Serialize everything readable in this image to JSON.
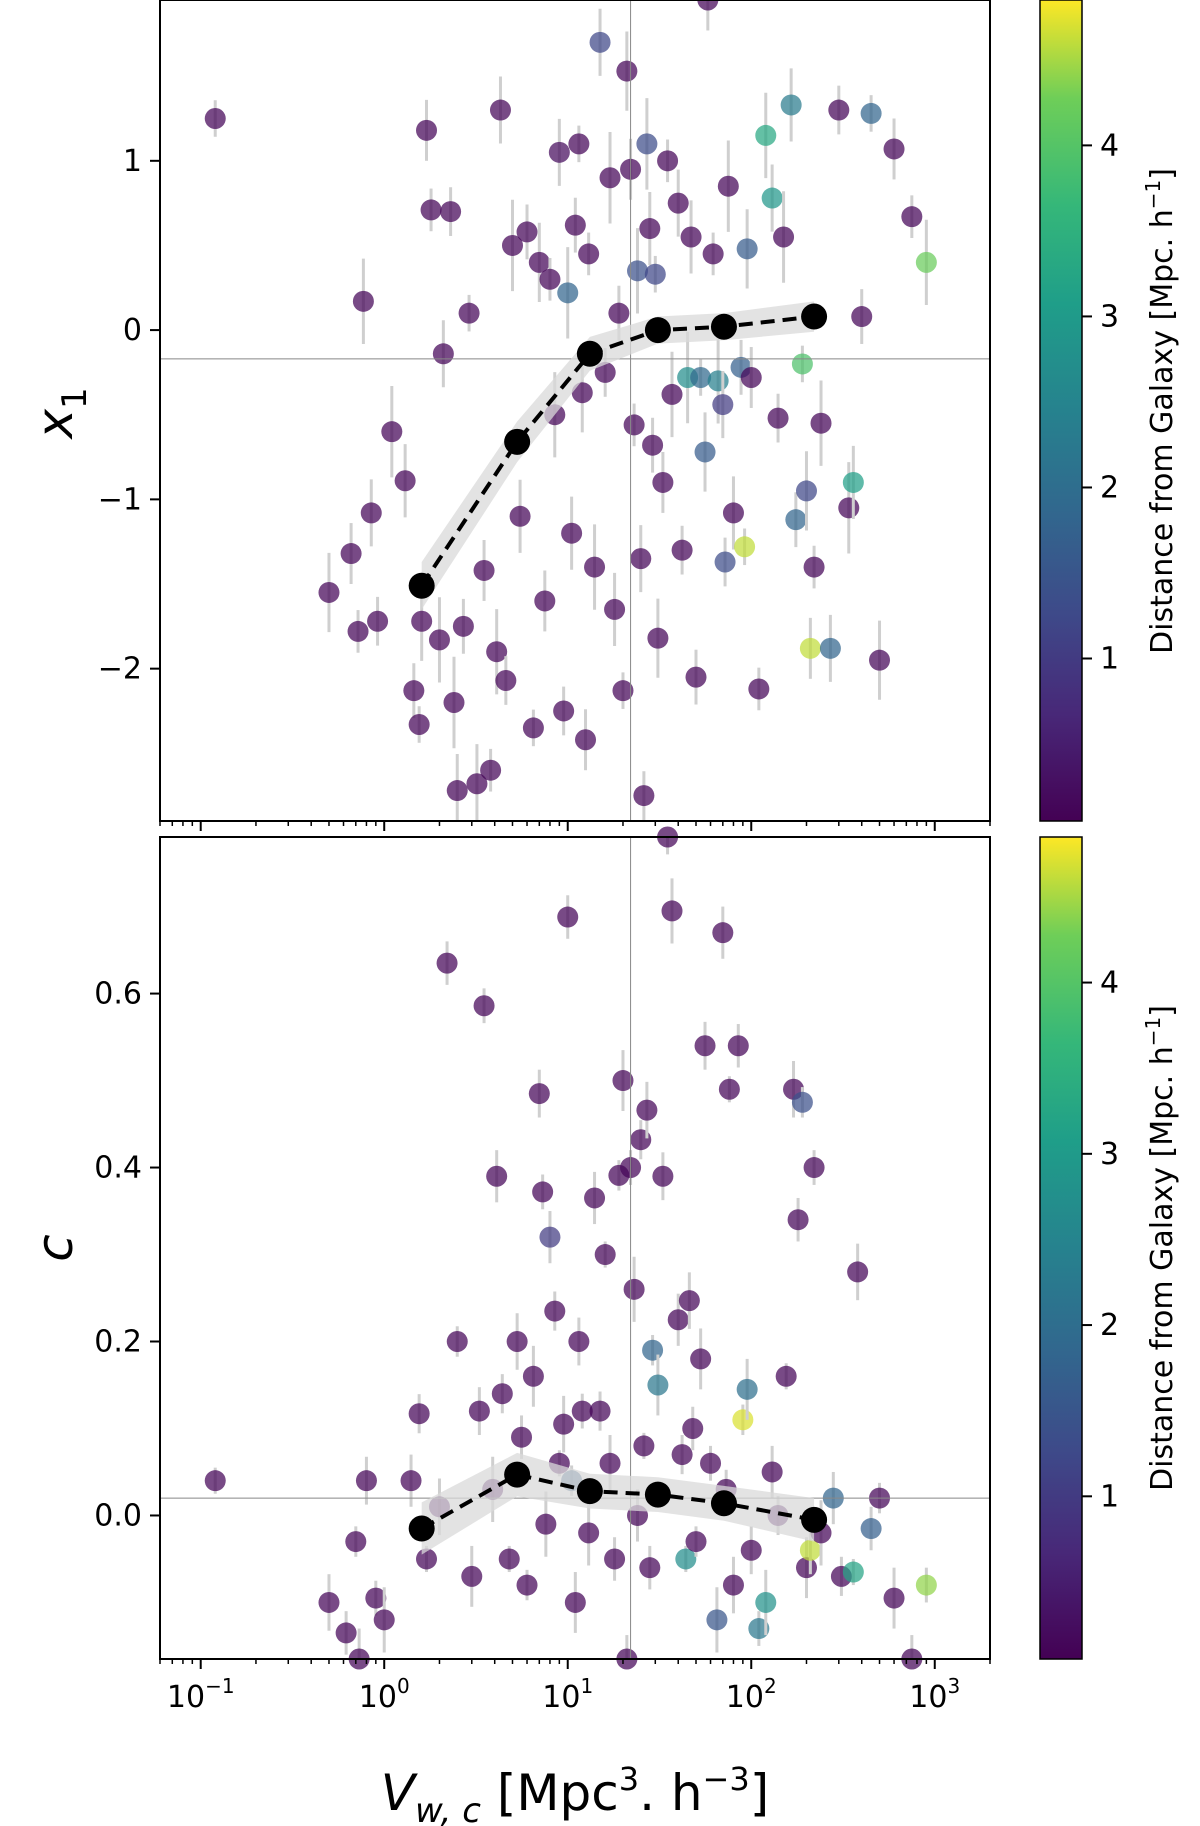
{
  "chart_data": [
    {
      "type": "scatter",
      "panel": "top",
      "ylabel": "x",
      "ylabel_sub": "1",
      "xscale": "log",
      "xlim": [
        0.06,
        2000
      ],
      "ylim": [
        -2.9,
        1.95
      ],
      "yticks": [
        1,
        0,
        -1,
        -2
      ],
      "ytick_labels": [
        "1",
        "0",
        "−1",
        "−2"
      ],
      "reference_lines": {
        "x": 22,
        "y": -0.17
      },
      "colorbar": {
        "label_main": "Distance from Galaxy [Mpc. h",
        "label_sup": "−1",
        "label_close": "]",
        "range": [
          0.05,
          4.85
        ],
        "ticks": [
          1,
          2,
          3,
          4
        ],
        "tick_labels": [
          "1",
          "2",
          "3",
          "4"
        ],
        "colormap": "viridis"
      },
      "binned_trend": {
        "x": [
          1.6,
          5.3,
          13.2,
          31,
          71,
          220
        ],
        "y": [
          -1.51,
          -0.66,
          -0.14,
          0.0,
          0.02,
          0.08
        ],
        "err": [
          0.14,
          0.12,
          0.1,
          0.08,
          0.08,
          0.09
        ]
      },
      "points": [
        [
          0.12,
          1.25,
          0.1
        ],
        [
          0.5,
          -1.55,
          0.1
        ],
        [
          0.66,
          -1.32,
          0.1
        ],
        [
          0.72,
          -1.78,
          0.1
        ],
        [
          0.77,
          0.17,
          0.1
        ],
        [
          0.85,
          -1.08,
          0.1
        ],
        [
          0.92,
          -1.72,
          0.1
        ],
        [
          1.1,
          -0.6,
          0.1
        ],
        [
          1.3,
          -0.89,
          0.1
        ],
        [
          1.45,
          -2.13,
          0.1
        ],
        [
          1.55,
          -2.33,
          0.1
        ],
        [
          1.6,
          -1.72,
          0.1
        ],
        [
          1.7,
          1.18,
          0.1
        ],
        [
          1.8,
          0.71,
          0.1
        ],
        [
          2.0,
          -1.83,
          0.1
        ],
        [
          2.1,
          -0.14,
          0.1
        ],
        [
          2.3,
          0.7,
          0.1
        ],
        [
          2.4,
          -2.2,
          0.1
        ],
        [
          2.5,
          -2.72,
          0.1
        ],
        [
          2.7,
          -1.75,
          0.1
        ],
        [
          2.9,
          0.1,
          0.1
        ],
        [
          3.2,
          -2.68,
          0.1
        ],
        [
          3.5,
          -1.42,
          0.1
        ],
        [
          3.8,
          -2.6,
          0.1
        ],
        [
          4.1,
          -1.9,
          0.1
        ],
        [
          4.3,
          1.3,
          0.1
        ],
        [
          4.6,
          -2.07,
          0.1
        ],
        [
          5.0,
          0.5,
          0.1
        ],
        [
          5.5,
          -1.1,
          0.1
        ],
        [
          6.0,
          0.58,
          0.1
        ],
        [
          6.5,
          -2.35,
          0.1
        ],
        [
          7.0,
          0.4,
          0.1
        ],
        [
          7.5,
          -1.6,
          0.1
        ],
        [
          8.0,
          0.3,
          0.1
        ],
        [
          8.5,
          -0.5,
          0.1
        ],
        [
          9.0,
          1.05,
          0.2
        ],
        [
          9.5,
          -2.25,
          0.1
        ],
        [
          10.0,
          0.22,
          1.8
        ],
        [
          10.5,
          -1.2,
          0.1
        ],
        [
          11.0,
          0.62,
          0.1
        ],
        [
          11.5,
          1.1,
          0.1
        ],
        [
          12.0,
          -0.37,
          0.1
        ],
        [
          12.5,
          -2.42,
          0.1
        ],
        [
          13.0,
          0.45,
          0.1
        ],
        [
          14.0,
          -1.4,
          0.1
        ],
        [
          15.0,
          1.7,
          1.2
        ],
        [
          16.0,
          -0.25,
          0.1
        ],
        [
          17.0,
          0.9,
          0.1
        ],
        [
          18.0,
          -1.65,
          0.1
        ],
        [
          19.0,
          0.1,
          0.1
        ],
        [
          20.0,
          -2.13,
          0.1
        ],
        [
          21.0,
          1.53,
          0.1
        ],
        [
          22.0,
          0.95,
          0.1
        ],
        [
          23.0,
          -0.56,
          0.1
        ],
        [
          24.0,
          0.35,
          1.4
        ],
        [
          25.0,
          -1.35,
          0.1
        ],
        [
          26.0,
          -2.75,
          0.1
        ],
        [
          27.0,
          1.1,
          1.3
        ],
        [
          28.0,
          0.6,
          0.1
        ],
        [
          29.0,
          -0.68,
          0.1
        ],
        [
          30.0,
          0.33,
          1.2
        ],
        [
          31.0,
          -1.82,
          0.1
        ],
        [
          33.0,
          -0.9,
          0.1
        ],
        [
          35.0,
          1.0,
          0.1
        ],
        [
          37.0,
          -0.38,
          0.1
        ],
        [
          40.0,
          0.75,
          0.1
        ],
        [
          42.0,
          -1.3,
          0.1
        ],
        [
          45.0,
          -0.28,
          2.7
        ],
        [
          47.0,
          0.55,
          0.1
        ],
        [
          50.0,
          -2.05,
          0.1
        ],
        [
          53.0,
          -0.28,
          1.9
        ],
        [
          56.0,
          -0.72,
          1.6
        ],
        [
          58.0,
          1.95,
          0.1
        ],
        [
          62.0,
          0.45,
          0.1
        ],
        [
          66.0,
          -0.3,
          2.4
        ],
        [
          70.0,
          -0.44,
          1.0
        ],
        [
          72.0,
          -1.37,
          1.3
        ],
        [
          75.0,
          0.85,
          0.1
        ],
        [
          80.0,
          -1.08,
          0.1
        ],
        [
          88.0,
          -0.22,
          1.7
        ],
        [
          92.0,
          -1.28,
          4.6
        ],
        [
          95.0,
          0.48,
          1.6
        ],
        [
          100.0,
          -0.28,
          0.1
        ],
        [
          110.0,
          -2.12,
          0.1
        ],
        [
          120.0,
          1.15,
          3.3
        ],
        [
          130.0,
          0.78,
          2.9
        ],
        [
          140.0,
          -0.52,
          0.1
        ],
        [
          150.0,
          0.55,
          0.1
        ],
        [
          165.0,
          1.33,
          2.3
        ],
        [
          175.0,
          -1.12,
          1.8
        ],
        [
          190.0,
          -0.2,
          3.9
        ],
        [
          200.0,
          -0.95,
          1.2
        ],
        [
          210.0,
          -1.88,
          4.6
        ],
        [
          220.0,
          -1.4,
          0.1
        ],
        [
          240.0,
          -0.55,
          0.1
        ],
        [
          270.0,
          -1.88,
          1.8
        ],
        [
          300.0,
          1.3,
          0.1
        ],
        [
          340.0,
          -1.05,
          0.1
        ],
        [
          360.0,
          -0.9,
          3.1
        ],
        [
          400.0,
          0.08,
          0.1
        ],
        [
          450.0,
          1.28,
          1.8
        ],
        [
          500.0,
          -1.95,
          0.1
        ],
        [
          600.0,
          1.07,
          0.1
        ],
        [
          750.0,
          0.67,
          0.1
        ],
        [
          900.0,
          0.4,
          4.2
        ]
      ]
    },
    {
      "type": "scatter",
      "panel": "bottom",
      "ylabel": "c",
      "xlabel_main": "V",
      "xlabel_sub": "w, c",
      "xlabel_units_pre": " [Mpc",
      "xlabel_sup1": "3",
      "xlabel_units_mid": ". h",
      "xlabel_sup2": "−3",
      "xlabel_units_post": "]",
      "xscale": "log",
      "xlim": [
        0.06,
        2000
      ],
      "ylim": [
        -0.165,
        0.78
      ],
      "xticks": [
        0.1,
        1,
        10,
        100,
        1000
      ],
      "xtick_bases": [
        "10",
        "10",
        "10",
        "10",
        "10"
      ],
      "xtick_exps": [
        "−1",
        "0",
        "1",
        "2",
        "3"
      ],
      "yticks": [
        0.0,
        0.2,
        0.4,
        0.6
      ],
      "ytick_labels": [
        "0.0",
        "0.2",
        "0.4",
        "0.6"
      ],
      "reference_lines": {
        "x": 22,
        "y": 0.02
      },
      "colorbar": {
        "label_main": "Distance from Galaxy [Mpc. h",
        "label_sup": "−1",
        "label_close": "]",
        "range": [
          0.05,
          4.85
        ],
        "ticks": [
          1,
          2,
          3,
          4
        ],
        "tick_labels": [
          "1",
          "2",
          "3",
          "4"
        ],
        "colormap": "viridis"
      },
      "binned_trend": {
        "x": [
          1.6,
          5.3,
          13.2,
          31,
          71,
          220
        ],
        "y": [
          -0.015,
          0.047,
          0.028,
          0.024,
          0.014,
          -0.005
        ],
        "err": [
          0.03,
          0.025,
          0.02,
          0.02,
          0.02,
          0.025
        ]
      },
      "points": [
        [
          0.12,
          0.04,
          0.1
        ],
        [
          0.5,
          -0.1,
          0.1
        ],
        [
          0.62,
          -0.135,
          0.1
        ],
        [
          0.7,
          -0.03,
          0.1
        ],
        [
          0.73,
          -0.165,
          0.1
        ],
        [
          0.8,
          0.04,
          0.1
        ],
        [
          0.9,
          -0.095,
          0.1
        ],
        [
          1.0,
          -0.12,
          0.1
        ],
        [
          1.4,
          0.04,
          0.1
        ],
        [
          1.55,
          0.117,
          0.1
        ],
        [
          1.7,
          -0.05,
          0.1
        ],
        [
          2.0,
          0.01,
          0.1
        ],
        [
          2.2,
          0.635,
          0.1
        ],
        [
          2.5,
          0.2,
          0.1
        ],
        [
          3.0,
          -0.07,
          0.1
        ],
        [
          3.3,
          0.12,
          0.1
        ],
        [
          3.5,
          0.586,
          0.1
        ],
        [
          3.9,
          0.03,
          0.1
        ],
        [
          4.1,
          0.39,
          0.1
        ],
        [
          4.4,
          0.14,
          0.1
        ],
        [
          4.8,
          -0.05,
          0.1
        ],
        [
          5.3,
          0.2,
          0.1
        ],
        [
          5.6,
          0.09,
          0.1
        ],
        [
          6.0,
          -0.08,
          0.1
        ],
        [
          6.5,
          0.16,
          0.1
        ],
        [
          7.0,
          0.485,
          0.1
        ],
        [
          7.3,
          0.372,
          0.1
        ],
        [
          7.6,
          -0.01,
          0.1
        ],
        [
          8.0,
          0.32,
          1.0
        ],
        [
          8.5,
          0.235,
          0.1
        ],
        [
          9.0,
          0.06,
          0.1
        ],
        [
          9.5,
          0.105,
          0.1
        ],
        [
          10.0,
          0.688,
          0.1
        ],
        [
          10.5,
          0.04,
          1.7
        ],
        [
          11.0,
          -0.1,
          0.1
        ],
        [
          11.5,
          0.2,
          0.1
        ],
        [
          12.0,
          0.12,
          0.1
        ],
        [
          13.0,
          -0.02,
          0.1
        ],
        [
          14.0,
          0.365,
          0.1
        ],
        [
          15.0,
          0.12,
          0.1
        ],
        [
          16.0,
          0.3,
          0.1
        ],
        [
          17.0,
          0.06,
          0.1
        ],
        [
          18.0,
          -0.05,
          0.1
        ],
        [
          19.0,
          0.391,
          0.1
        ],
        [
          20.0,
          0.5,
          0.1
        ],
        [
          21.0,
          -0.165,
          0.1
        ],
        [
          22.0,
          0.4,
          0.1
        ],
        [
          23.0,
          0.26,
          0.1
        ],
        [
          24.0,
          0.0,
          0.1
        ],
        [
          25.0,
          0.432,
          0.1
        ],
        [
          26.0,
          0.08,
          0.1
        ],
        [
          27.0,
          0.466,
          0.1
        ],
        [
          28.0,
          -0.06,
          0.1
        ],
        [
          29.0,
          0.19,
          1.8
        ],
        [
          31.0,
          0.15,
          2.2
        ],
        [
          33.0,
          0.39,
          0.1
        ],
        [
          35.0,
          0.78,
          0.1
        ],
        [
          37.0,
          0.695,
          0.1
        ],
        [
          40.0,
          0.225,
          0.1
        ],
        [
          42.0,
          0.07,
          0.1
        ],
        [
          44.0,
          -0.05,
          2.7
        ],
        [
          46.0,
          0.247,
          0.1
        ],
        [
          48.0,
          0.1,
          0.1
        ],
        [
          50.0,
          -0.03,
          0.1
        ],
        [
          53.0,
          0.18,
          0.1
        ],
        [
          56.0,
          0.54,
          0.1
        ],
        [
          60.0,
          0.06,
          0.1
        ],
        [
          65.0,
          -0.12,
          1.5
        ],
        [
          70.0,
          0.67,
          0.1
        ],
        [
          73.0,
          0.03,
          0.1
        ],
        [
          76.0,
          0.49,
          0.1
        ],
        [
          80.0,
          -0.08,
          0.1
        ],
        [
          85.0,
          0.54,
          0.1
        ],
        [
          90.0,
          0.11,
          4.7
        ],
        [
          95.0,
          0.145,
          2.0
        ],
        [
          100.0,
          -0.04,
          0.1
        ],
        [
          110.0,
          -0.13,
          2.2
        ],
        [
          120.0,
          -0.1,
          2.8
        ],
        [
          130.0,
          0.05,
          0.1
        ],
        [
          140.0,
          0.0,
          0.1
        ],
        [
          155.0,
          0.16,
          0.1
        ],
        [
          170.0,
          0.49,
          0.1
        ],
        [
          180.0,
          0.34,
          0.1
        ],
        [
          190.0,
          0.475,
          1.4
        ],
        [
          200.0,
          -0.06,
          0.1
        ],
        [
          210.0,
          -0.04,
          4.6
        ],
        [
          220.0,
          0.4,
          0.1
        ],
        [
          240.0,
          -0.02,
          0.1
        ],
        [
          280.0,
          0.02,
          1.8
        ],
        [
          310.0,
          -0.07,
          0.1
        ],
        [
          360.0,
          -0.065,
          3.2
        ],
        [
          380.0,
          0.28,
          0.1
        ],
        [
          450.0,
          -0.015,
          1.7
        ],
        [
          500.0,
          0.02,
          0.1
        ],
        [
          600.0,
          -0.095,
          0.1
        ],
        [
          750.0,
          -0.165,
          0.1
        ],
        [
          900.0,
          -0.08,
          4.4
        ]
      ]
    }
  ]
}
